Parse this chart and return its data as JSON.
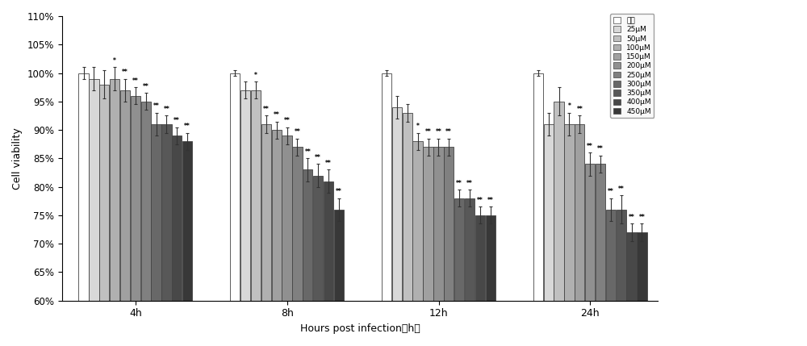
{
  "time_labels": [
    "4h",
    "8h",
    "12h",
    "24h"
  ],
  "concentrations": [
    "空白",
    "25μM",
    "50μM",
    "100μM",
    "150μM",
    "200μM",
    "250μM",
    "300μM",
    "350μM",
    "400μM",
    "450μM"
  ],
  "values": [
    [
      100,
      99,
      98,
      99,
      97,
      96,
      95,
      91,
      91,
      89,
      88
    ],
    [
      100,
      97,
      97,
      91,
      90,
      89,
      87,
      83,
      82,
      81,
      76
    ],
    [
      100,
      94,
      93,
      88,
      87,
      87,
      87,
      78,
      78,
      75,
      75
    ],
    [
      100,
      91,
      95,
      91,
      91,
      84,
      84,
      76,
      76,
      72,
      72
    ]
  ],
  "errors": [
    [
      1.0,
      2.0,
      2.5,
      2.0,
      2.0,
      1.5,
      1.5,
      2.0,
      1.5,
      1.5,
      1.5
    ],
    [
      0.5,
      1.5,
      1.5,
      1.5,
      1.5,
      1.5,
      1.5,
      2.0,
      2.0,
      2.0,
      2.0
    ],
    [
      0.5,
      2.0,
      1.5,
      1.5,
      1.5,
      1.5,
      1.5,
      1.5,
      1.5,
      1.5,
      1.5
    ],
    [
      0.5,
      2.0,
      2.5,
      2.0,
      1.5,
      2.0,
      1.5,
      2.0,
      2.5,
      1.5,
      1.5
    ]
  ],
  "bar_colors": [
    "#ffffff",
    "#d8d8d8",
    "#c0c0c0",
    "#b0b0b0",
    "#a0a0a0",
    "#909090",
    "#808080",
    "#686868",
    "#585858",
    "#484848",
    "#383838"
  ],
  "edge_color": "#444444",
  "xlabel": "Hours post infection（h）",
  "ylabel": "Cell viability",
  "ylim": [
    60,
    110
  ],
  "yticks": [
    60,
    65,
    70,
    75,
    80,
    85,
    90,
    95,
    100,
    105,
    110
  ],
  "figsize": [
    10.0,
    4.29
  ],
  "dpi": 100,
  "background_color": "#ffffff",
  "sig_markers": [
    [
      null,
      null,
      null,
      "*",
      "**",
      "**",
      "**",
      "**",
      "**",
      "**",
      "**"
    ],
    [
      null,
      null,
      "*",
      "**",
      "**",
      "**",
      "**",
      "**",
      "**",
      "**",
      "**"
    ],
    [
      null,
      null,
      null,
      "*",
      "**",
      "**",
      "**",
      "**",
      "**",
      "**",
      "**"
    ],
    [
      null,
      null,
      null,
      "*",
      "**",
      "**",
      "**",
      "**",
      "**",
      "**",
      "**"
    ]
  ]
}
